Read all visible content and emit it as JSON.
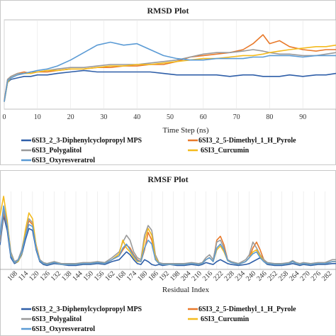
{
  "colors": {
    "series_blue": "#2e5ea8",
    "series_orange": "#e8792a",
    "series_gray": "#9a9a9a",
    "series_yellow": "#f4bb1e",
    "series_lightblue": "#5b9bd5"
  },
  "chart_data": [
    {
      "type": "line",
      "title": "RMSD Plot",
      "xlabel": "Time Step (ns)",
      "ylabel": "",
      "xlim": [
        0,
        100
      ],
      "ylim": [
        0,
        0.6
      ],
      "x_ticks": [
        "0",
        "10",
        "20",
        "30",
        "40",
        "50",
        "60",
        "70",
        "80",
        "90"
      ],
      "x": [
        0,
        1,
        2,
        4,
        6,
        8,
        10,
        13,
        16,
        20,
        24,
        28,
        32,
        36,
        40,
        44,
        48,
        52,
        56,
        60,
        64,
        68,
        72,
        75,
        78,
        80,
        83,
        86,
        90,
        94,
        97,
        100
      ],
      "series": [
        {
          "name": "6SI3_2_3-Diphenylcyclopropyl MPS",
          "color_key": "series_blue",
          "values": [
            0.05,
            0.18,
            0.2,
            0.21,
            0.22,
            0.22,
            0.23,
            0.23,
            0.24,
            0.25,
            0.26,
            0.25,
            0.25,
            0.25,
            0.25,
            0.25,
            0.24,
            0.23,
            0.23,
            0.23,
            0.23,
            0.22,
            0.23,
            0.23,
            0.22,
            0.22,
            0.22,
            0.23,
            0.22,
            0.23,
            0.23,
            0.24
          ]
        },
        {
          "name": "6SI3_2_5-Dimethyl_1_H_Pyrole",
          "color_key": "series_orange",
          "values": [
            0.06,
            0.2,
            0.22,
            0.24,
            0.25,
            0.24,
            0.25,
            0.25,
            0.26,
            0.27,
            0.27,
            0.28,
            0.28,
            0.29,
            0.29,
            0.3,
            0.3,
            0.32,
            0.35,
            0.36,
            0.37,
            0.38,
            0.4,
            0.44,
            0.5,
            0.44,
            0.46,
            0.42,
            0.4,
            0.39,
            0.4,
            0.4
          ]
        },
        {
          "name": "6SI3_Polygalitol",
          "color_key": "series_gray",
          "values": [
            0.05,
            0.2,
            0.22,
            0.24,
            0.24,
            0.25,
            0.25,
            0.26,
            0.27,
            0.28,
            0.28,
            0.29,
            0.3,
            0.3,
            0.3,
            0.31,
            0.32,
            0.33,
            0.35,
            0.37,
            0.38,
            0.38,
            0.39,
            0.4,
            0.39,
            0.38,
            0.37,
            0.37,
            0.36,
            0.36,
            0.37,
            0.38
          ]
        },
        {
          "name": "6SI3_Curcumin",
          "color_key": "series_yellow",
          "values": [
            0.05,
            0.18,
            0.21,
            0.23,
            0.24,
            0.24,
            0.25,
            0.26,
            0.26,
            0.27,
            0.27,
            0.28,
            0.29,
            0.29,
            0.3,
            0.3,
            0.31,
            0.32,
            0.33,
            0.34,
            0.34,
            0.35,
            0.36,
            0.36,
            0.37,
            0.38,
            0.39,
            0.4,
            0.41,
            0.42,
            0.42,
            0.43
          ]
        },
        {
          "name": "6SI3_Oxyresveratrol",
          "color_key": "series_lightblue",
          "values": [
            0.05,
            0.19,
            0.21,
            0.23,
            0.24,
            0.25,
            0.26,
            0.27,
            0.29,
            0.33,
            0.38,
            0.43,
            0.45,
            0.43,
            0.44,
            0.4,
            0.36,
            0.34,
            0.33,
            0.33,
            0.34,
            0.34,
            0.34,
            0.35,
            0.35,
            0.36,
            0.36,
            0.36,
            0.35,
            0.36,
            0.36,
            0.36
          ]
        }
      ],
      "legend": "bottom"
    },
    {
      "type": "line",
      "title": "RMSF Plot",
      "xlabel": "Residual Index",
      "ylabel": "",
      "xlim": [
        102,
        288
      ],
      "ylim": [
        0,
        0.8
      ],
      "x_ticks": [
        "108",
        "114",
        "120",
        "126",
        "132",
        "138",
        "144",
        "150",
        "156",
        "162",
        "168",
        "174",
        "180",
        "186",
        "192",
        "198",
        "204",
        "210",
        "216",
        "222",
        "228",
        "234",
        "240",
        "246",
        "252",
        "258",
        "264",
        "270",
        "276",
        "282"
      ],
      "x": [
        102,
        104,
        106,
        108,
        110,
        112,
        114,
        116,
        118,
        120,
        122,
        124,
        126,
        128,
        130,
        132,
        136,
        140,
        144,
        148,
        152,
        156,
        160,
        164,
        168,
        170,
        172,
        174,
        176,
        178,
        180,
        182,
        184,
        186,
        188,
        190,
        192,
        196,
        200,
        204,
        208,
        212,
        214,
        216,
        218,
        220,
        222,
        224,
        226,
        228,
        230,
        234,
        238,
        240,
        242,
        244,
        246,
        248,
        250,
        254,
        258,
        262,
        264,
        266,
        268,
        270,
        274,
        278,
        282,
        286,
        288
      ],
      "series": [
        {
          "name": "6SI3_2_3-Diphenylcyclopropyl MPS",
          "color_key": "series_blue",
          "values": [
            0.25,
            0.55,
            0.4,
            0.12,
            0.06,
            0.08,
            0.15,
            0.3,
            0.42,
            0.4,
            0.2,
            0.08,
            0.05,
            0.04,
            0.05,
            0.06,
            0.05,
            0.04,
            0.04,
            0.05,
            0.05,
            0.06,
            0.05,
            0.08,
            0.1,
            0.14,
            0.18,
            0.15,
            0.1,
            0.06,
            0.05,
            0.1,
            0.08,
            0.05,
            0.04,
            0.05,
            0.04,
            0.05,
            0.04,
            0.04,
            0.05,
            0.04,
            0.05,
            0.07,
            0.06,
            0.05,
            0.08,
            0.1,
            0.08,
            0.06,
            0.05,
            0.04,
            0.05,
            0.06,
            0.08,
            0.1,
            0.12,
            0.08,
            0.05,
            0.04,
            0.04,
            0.05,
            0.06,
            0.05,
            0.04,
            0.05,
            0.04,
            0.05,
            0.05,
            0.06,
            0.06
          ]
        },
        {
          "name": "6SI3_2_5-Dimethyl_1_H_Pyrole",
          "color_key": "series_orange",
          "values": [
            0.3,
            0.58,
            0.45,
            0.15,
            0.07,
            0.09,
            0.18,
            0.35,
            0.5,
            0.46,
            0.25,
            0.1,
            0.06,
            0.05,
            0.06,
            0.07,
            0.05,
            0.05,
            0.05,
            0.06,
            0.06,
            0.07,
            0.06,
            0.1,
            0.14,
            0.2,
            0.25,
            0.22,
            0.15,
            0.1,
            0.08,
            0.2,
            0.38,
            0.3,
            0.1,
            0.06,
            0.05,
            0.05,
            0.05,
            0.05,
            0.06,
            0.05,
            0.06,
            0.1,
            0.12,
            0.08,
            0.3,
            0.34,
            0.25,
            0.1,
            0.07,
            0.05,
            0.08,
            0.12,
            0.22,
            0.28,
            0.2,
            0.1,
            0.06,
            0.05,
            0.05,
            0.06,
            0.08,
            0.06,
            0.05,
            0.06,
            0.05,
            0.06,
            0.06,
            0.08,
            0.08
          ]
        },
        {
          "name": "6SI3_Polygalitol",
          "color_key": "series_gray",
          "values": [
            0.28,
            0.6,
            0.48,
            0.18,
            0.08,
            0.1,
            0.2,
            0.38,
            0.52,
            0.48,
            0.22,
            0.1,
            0.07,
            0.06,
            0.07,
            0.08,
            0.06,
            0.06,
            0.06,
            0.07,
            0.07,
            0.08,
            0.07,
            0.12,
            0.18,
            0.28,
            0.35,
            0.3,
            0.18,
            0.12,
            0.1,
            0.35,
            0.45,
            0.4,
            0.15,
            0.07,
            0.06,
            0.06,
            0.06,
            0.06,
            0.07,
            0.06,
            0.07,
            0.12,
            0.15,
            0.1,
            0.28,
            0.3,
            0.22,
            0.1,
            0.08,
            0.06,
            0.1,
            0.15,
            0.28,
            0.22,
            0.15,
            0.1,
            0.07,
            0.06,
            0.06,
            0.07,
            0.09,
            0.07,
            0.06,
            0.07,
            0.06,
            0.07,
            0.07,
            0.1,
            0.1
          ]
        },
        {
          "name": "6SI3_Curcumin",
          "color_key": "series_yellow",
          "values": [
            0.55,
            0.75,
            0.5,
            0.15,
            0.07,
            0.08,
            0.16,
            0.4,
            0.58,
            0.52,
            0.24,
            0.09,
            0.06,
            0.05,
            0.06,
            0.07,
            0.05,
            0.05,
            0.05,
            0.06,
            0.06,
            0.07,
            0.06,
            0.1,
            0.16,
            0.3,
            0.22,
            0.18,
            0.12,
            0.08,
            0.08,
            0.3,
            0.42,
            0.35,
            0.12,
            0.06,
            0.05,
            0.05,
            0.05,
            0.05,
            0.06,
            0.05,
            0.06,
            0.1,
            0.12,
            0.08,
            0.2,
            0.24,
            0.18,
            0.09,
            0.07,
            0.05,
            0.08,
            0.12,
            0.18,
            0.2,
            0.14,
            0.08,
            0.06,
            0.05,
            0.05,
            0.06,
            0.08,
            0.06,
            0.05,
            0.06,
            0.05,
            0.06,
            0.06,
            0.08,
            0.08
          ]
        },
        {
          "name": "6SI3_Oxyresveratrol",
          "color_key": "series_lightblue",
          "values": [
            0.35,
            0.65,
            0.45,
            0.14,
            0.07,
            0.09,
            0.17,
            0.34,
            0.46,
            0.44,
            0.22,
            0.09,
            0.06,
            0.05,
            0.06,
            0.07,
            0.05,
            0.05,
            0.05,
            0.06,
            0.06,
            0.07,
            0.06,
            0.1,
            0.14,
            0.22,
            0.26,
            0.2,
            0.14,
            0.09,
            0.08,
            0.22,
            0.3,
            0.26,
            0.1,
            0.06,
            0.05,
            0.05,
            0.05,
            0.05,
            0.06,
            0.05,
            0.06,
            0.1,
            0.12,
            0.08,
            0.22,
            0.26,
            0.2,
            0.09,
            0.07,
            0.05,
            0.08,
            0.12,
            0.16,
            0.18,
            0.12,
            0.08,
            0.06,
            0.05,
            0.05,
            0.06,
            0.08,
            0.06,
            0.05,
            0.06,
            0.05,
            0.06,
            0.06,
            0.08,
            0.08
          ]
        }
      ],
      "legend": "bottom"
    }
  ]
}
